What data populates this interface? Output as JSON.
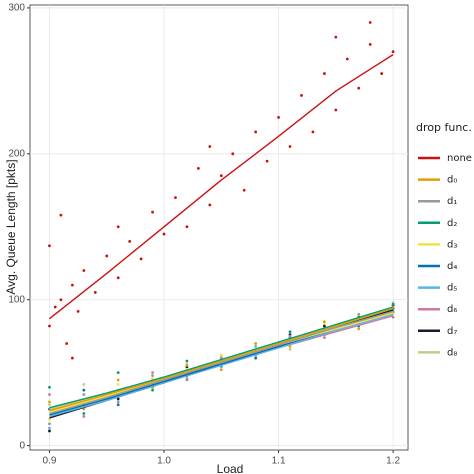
{
  "chart_data": {
    "type": "scatter",
    "x_label": "Load",
    "y_label": "Avg. Queue Length [pkts]",
    "legend_title": "drop func.",
    "xlim": [
      0.883,
      1.213
    ],
    "ylim": [
      -3,
      302
    ],
    "xticks": [
      0.9,
      {
        "value": 1,
        "label": "1.0"
      },
      1.1,
      1.2
    ],
    "yticks": [
      0,
      100,
      200,
      300
    ],
    "grid": true,
    "legend": "right",
    "fit_x": [
      0.9,
      0.95,
      1.0,
      1.05,
      1.1,
      1.15,
      1.2
    ],
    "series": [
      {
        "name": "none",
        "color": "#cc1111",
        "x": [
          0.9,
          0.905,
          0.91,
          0.915,
          0.92,
          0.925,
          0.93,
          0.94,
          0.95,
          0.96,
          0.97,
          0.98,
          0.99,
          1.0,
          1.01,
          1.02,
          1.03,
          1.04,
          1.05,
          1.06,
          1.07,
          1.08,
          1.09,
          1.1,
          1.11,
          1.12,
          1.13,
          1.14,
          1.15,
          1.16,
          1.17,
          1.18,
          1.19,
          1.2,
          0.9,
          0.91,
          0.92,
          0.96,
          1.04,
          1.15,
          1.18
        ],
        "values": [
          82,
          95,
          100,
          70,
          110,
          92,
          120,
          105,
          130,
          115,
          140,
          128,
          160,
          145,
          170,
          150,
          190,
          165,
          185,
          200,
          175,
          215,
          195,
          225,
          205,
          240,
          215,
          255,
          230,
          265,
          245,
          275,
          255,
          270,
          137,
          158,
          60,
          150,
          205,
          280,
          290
        ],
        "fit": [
          87,
          118,
          150,
          182,
          212,
          243,
          268
        ]
      },
      {
        "name": "d₀",
        "color": "#e69f00",
        "x": [
          0.9,
          0.93,
          0.96,
          0.99,
          1.02,
          1.05,
          1.08,
          1.11,
          1.14,
          1.17,
          1.2
        ],
        "values": [
          30,
          25,
          45,
          40,
          55,
          52,
          70,
          68,
          85,
          80,
          95
        ],
        "fit": [
          24,
          35,
          46,
          58,
          70,
          82,
          94
        ]
      },
      {
        "name": "d₁",
        "color": "#999999",
        "x": [
          0.9,
          0.93,
          0.96,
          0.99,
          1.02,
          1.05,
          1.08,
          1.11,
          1.14,
          1.17,
          1.2
        ],
        "values": [
          15,
          35,
          30,
          48,
          45,
          60,
          62,
          75,
          76,
          90,
          92
        ],
        "fit": [
          22,
          33,
          45,
          57,
          69,
          81,
          92
        ]
      },
      {
        "name": "d₂",
        "color": "#009e73",
        "x": [
          0.9,
          0.93,
          0.96,
          0.99,
          1.02,
          1.05,
          1.08,
          1.11,
          1.14,
          1.17,
          1.2
        ],
        "values": [
          40,
          22,
          50,
          38,
          58,
          55,
          64,
          78,
          80,
          88,
          97
        ],
        "fit": [
          26,
          36,
          47,
          59,
          71,
          83,
          95
        ]
      },
      {
        "name": "d₃",
        "color": "#f0e442",
        "x": [
          0.9,
          0.93,
          0.96,
          0.99,
          1.02,
          1.05,
          1.08,
          1.11,
          1.14,
          1.17,
          1.2
        ],
        "values": [
          18,
          30,
          42,
          46,
          52,
          62,
          66,
          70,
          84,
          85,
          90
        ],
        "fit": [
          23,
          34,
          46,
          57,
          69,
          80,
          91
        ]
      },
      {
        "name": "d₄",
        "color": "#0072b2",
        "x": [
          0.9,
          0.93,
          0.96,
          0.99,
          1.02,
          1.05,
          1.08,
          1.11,
          1.14,
          1.17,
          1.2
        ],
        "values": [
          25,
          38,
          28,
          44,
          48,
          58,
          60,
          74,
          78,
          82,
          94
        ],
        "fit": [
          21,
          32,
          44,
          56,
          68,
          80,
          92
        ]
      },
      {
        "name": "d₅",
        "color": "#56b4e9",
        "x": [
          0.9,
          0.93,
          0.96,
          0.99,
          1.02,
          1.05,
          1.08,
          1.11,
          1.14,
          1.17,
          1.2
        ],
        "values": [
          12,
          26,
          34,
          40,
          50,
          54,
          68,
          70,
          76,
          86,
          91
        ],
        "fit": [
          20,
          31,
          43,
          55,
          67,
          79,
          90
        ]
      },
      {
        "name": "d₆",
        "color": "#cc79a7",
        "x": [
          0.9,
          0.93,
          0.96,
          0.99,
          1.02,
          1.05,
          1.08,
          1.11,
          1.14,
          1.17,
          1.2
        ],
        "values": [
          35,
          20,
          38,
          50,
          46,
          56,
          64,
          72,
          74,
          84,
          88
        ],
        "fit": [
          24,
          34,
          45,
          56,
          67,
          78,
          89
        ]
      },
      {
        "name": "d₇",
        "color": "#1a1a2e",
        "x": [
          0.9,
          0.93,
          0.96,
          0.99,
          1.02,
          1.05,
          1.08,
          1.11,
          1.14,
          1.17,
          1.2
        ],
        "values": [
          10,
          28,
          32,
          42,
          54,
          60,
          62,
          76,
          82,
          88,
          96
        ],
        "fit": [
          19,
          31,
          43,
          56,
          68,
          81,
          93
        ]
      },
      {
        "name": "d₈",
        "color": "#c5c98a",
        "x": [
          0.9,
          0.93,
          0.96,
          0.99,
          1.02,
          1.05,
          1.08,
          1.11,
          1.14,
          1.17,
          1.2
        ],
        "values": [
          28,
          42,
          36,
          45,
          56,
          52,
          70,
          66,
          80,
          90,
          98
        ],
        "fit": [
          25,
          36,
          47,
          58,
          70,
          82,
          94
        ]
      }
    ]
  }
}
